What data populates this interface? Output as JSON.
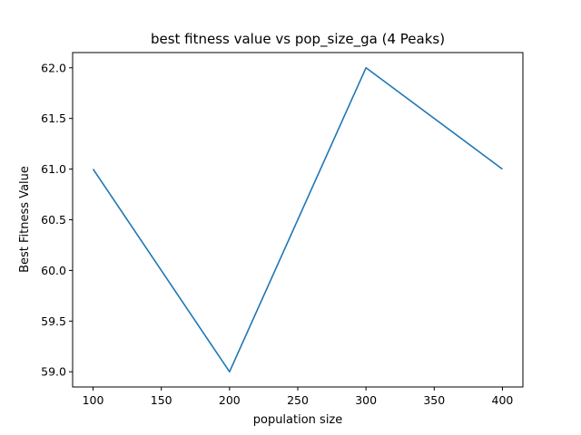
{
  "chart_data": {
    "type": "line",
    "title": "best fitness value vs pop_size_ga (4 Peaks)",
    "xlabel": "population size",
    "ylabel": "Best Fitness Value",
    "x": [
      100,
      200,
      300,
      400
    ],
    "series": [
      {
        "values": [
          61.0,
          59.0,
          62.0,
          61.0
        ],
        "color": "#1f77b4"
      }
    ],
    "xlim": [
      85,
      415
    ],
    "ylim": [
      58.85,
      62.15
    ],
    "xticks": [
      100,
      150,
      200,
      250,
      300,
      350,
      400
    ],
    "xtick_labels": [
      "100",
      "150",
      "200",
      "250",
      "300",
      "350",
      "400"
    ],
    "yticks": [
      59.0,
      59.5,
      60.0,
      60.5,
      61.0,
      61.5,
      62.0
    ],
    "ytick_labels": [
      "59.0",
      "59.5",
      "60.0",
      "60.5",
      "61.0",
      "61.5",
      "62.0"
    ],
    "grid": false,
    "legend": "none"
  }
}
